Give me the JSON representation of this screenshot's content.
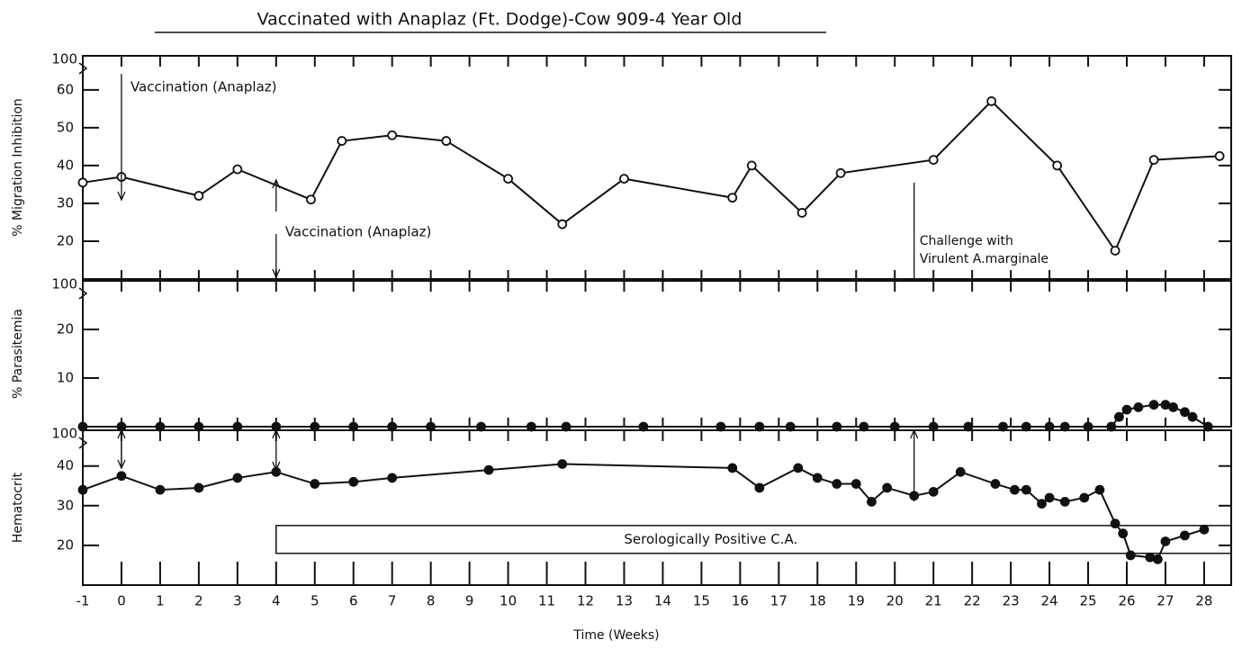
{
  "chart_data": [
    {
      "type": "line",
      "title": "Vaccinated with Anaplaz (Ft. Dodge)-Cow 909-4 Year Old",
      "ylabel": "% Migration Inhibition",
      "axis_break_label": "100",
      "marker": "open",
      "color": "#111111",
      "xlim": [
        -1,
        28.7
      ],
      "ylim": [
        10,
        69
      ],
      "yticks": [
        20,
        30,
        40,
        50,
        60
      ],
      "x": [
        -1,
        0,
        2,
        3,
        4.9,
        5.7,
        7,
        8.4,
        10,
        11.4,
        13,
        15.8,
        16.3,
        17.6,
        18.6,
        21,
        22.5,
        24.2,
        25.7,
        26.7,
        28.4
      ],
      "values": [
        35.5,
        37,
        32,
        39,
        31,
        46.5,
        48,
        46.5,
        36.5,
        24.5,
        36.5,
        31.5,
        40,
        27.5,
        38,
        41.5,
        57,
        40,
        17.5,
        41.5,
        42.5
      ],
      "annotations": [
        {
          "text": "Vaccination (Anaplaz)",
          "x": 0
        },
        {
          "text": "Vaccination (Anaplaz)",
          "x": 4
        },
        {
          "text": [
            "Challenge with",
            "Virulent A.marginale"
          ],
          "x": 20.5
        }
      ]
    },
    {
      "type": "line",
      "ylabel": "% Parasitemia",
      "axis_break_label": "100",
      "marker": "filled",
      "color": "#111111",
      "xlim": [
        -1,
        28.7
      ],
      "ylim": [
        0,
        30
      ],
      "yticks": [
        10,
        20
      ],
      "x": [
        -1,
        0,
        1,
        2,
        3,
        4,
        5,
        6,
        7,
        8,
        9.3,
        10.6,
        11.5,
        13.5,
        15.5,
        16.5,
        17.3,
        18.5,
        19.2,
        20,
        21,
        21.9,
        22.8,
        23.4,
        24,
        24.4,
        25,
        25.6,
        25.8,
        26,
        26.3,
        26.7,
        27,
        27.2,
        27.5,
        27.7,
        28.1
      ],
      "values": [
        0,
        0,
        0,
        0,
        0,
        0,
        0,
        0,
        0,
        0,
        0,
        0,
        0,
        0,
        0,
        0,
        0,
        0,
        0,
        0,
        0,
        0,
        0,
        0,
        0,
        0,
        0,
        0,
        2,
        3.5,
        4,
        4.5,
        4.5,
        4,
        3,
        2,
        0
      ]
    },
    {
      "type": "line",
      "ylabel": "Hematocrit",
      "axis_break_label": "100",
      "marker": "filled",
      "color": "#111111",
      "xlabel": "Time (Weeks)",
      "xlim": [
        -1,
        28.7
      ],
      "ylim": [
        10,
        49
      ],
      "yticks": [
        20,
        30,
        40
      ],
      "xticks": [
        -1,
        0,
        1,
        2,
        3,
        4,
        5,
        6,
        7,
        8,
        9,
        10,
        11,
        12,
        13,
        14,
        15,
        16,
        17,
        18,
        19,
        20,
        21,
        22,
        23,
        24,
        25,
        26,
        27,
        28
      ],
      "x": [
        -1,
        0,
        1,
        2,
        3,
        4,
        5,
        6,
        7,
        9.5,
        11.4,
        15.8,
        16.5,
        17.5,
        18,
        18.5,
        19,
        19.4,
        19.8,
        20.5,
        21,
        21.7,
        22.6,
        23.1,
        23.4,
        23.8,
        24,
        24.4,
        24.9,
        25.3,
        25.7,
        25.9,
        26.1,
        26.6,
        26.8,
        27,
        27.5,
        28
      ],
      "values": [
        34,
        37.5,
        34,
        34.5,
        37,
        38.5,
        35.5,
        36,
        37,
        39,
        40.5,
        39.5,
        34.5,
        39.5,
        37,
        35.5,
        35.5,
        31,
        34.5,
        32.5,
        33.5,
        38.5,
        35.5,
        34,
        34,
        30.5,
        32,
        31,
        32,
        34,
        25.5,
        23,
        17.5,
        17,
        16.5,
        21,
        22.5,
        24
      ],
      "band": {
        "label": "Serologically Positive C.A.",
        "x": [
          4,
          28.7
        ]
      }
    }
  ]
}
